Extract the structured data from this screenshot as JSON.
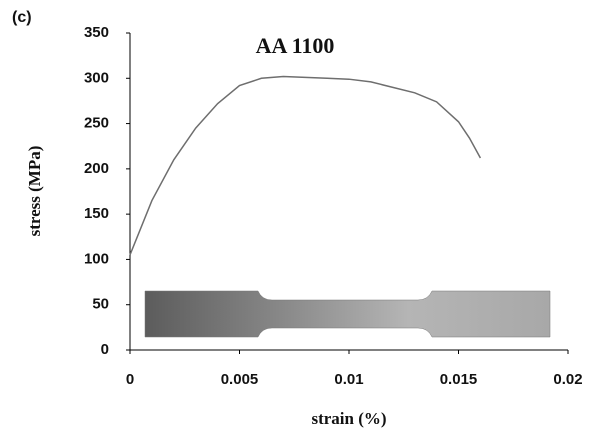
{
  "chart_data": {
    "type": "line",
    "panel_label": "(c)",
    "title": "AA 1100",
    "xlabel": "strain (%)",
    "ylabel": "stress (MPa)",
    "x": [
      0,
      0.001,
      0.002,
      0.003,
      0.004,
      0.005,
      0.006,
      0.007,
      0.008,
      0.009,
      0.01,
      0.011,
      0.012,
      0.013,
      0.014,
      0.015,
      0.0155,
      0.016
    ],
    "series": [
      {
        "name": "AA 1100",
        "color": "#6e6e6e",
        "values": [
          105,
          165,
          210,
          245,
          272,
          292,
          300,
          302,
          301,
          300,
          299,
          296,
          290,
          284,
          274,
          252,
          234,
          212
        ]
      }
    ],
    "xlim": [
      0,
      0.02
    ],
    "xticks": [
      0,
      0.005,
      0.01,
      0.015,
      0.02
    ],
    "ylim": [
      0,
      350
    ],
    "yticks": [
      0,
      50,
      100,
      150,
      200,
      250,
      300,
      350
    ],
    "grid": false
  }
}
